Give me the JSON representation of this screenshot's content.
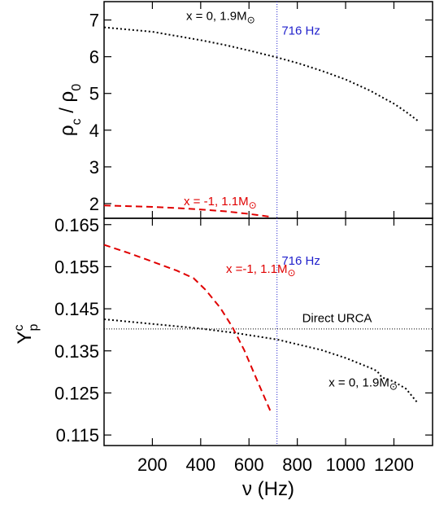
{
  "figure": {
    "x_axis_label": "ν (Hz)",
    "vline_x": 716,
    "colors": {
      "x0": "#000000",
      "xm1": "#e00000",
      "vline": "#2222cc",
      "urca": "#000000"
    }
  },
  "chart_data": [
    {
      "type": "line",
      "ylabel": "ρc / ρ0",
      "xlim": [
        0,
        1360
      ],
      "ylim": [
        1.6,
        7.5
      ],
      "y_ticks": [
        2,
        3,
        4,
        5,
        6,
        7
      ],
      "y_tick_labels": [
        "2",
        "3",
        "4",
        "5",
        "6",
        "7"
      ],
      "series": [
        {
          "name": "x = 0, 1.9M⊙",
          "color": "#000000",
          "style": "dotted",
          "x": [
            0,
            200,
            400,
            500,
            600,
            716,
            800,
            900,
            1000,
            1100,
            1150,
            1200,
            1250,
            1300
          ],
          "y": [
            6.8,
            6.68,
            6.45,
            6.32,
            6.17,
            5.98,
            5.83,
            5.62,
            5.38,
            5.08,
            4.9,
            4.72,
            4.5,
            4.25
          ]
        },
        {
          "name": "x = -1,  1.1M⊙",
          "color": "#e00000",
          "style": "dashed",
          "x": [
            0,
            100,
            200,
            300,
            400,
            500,
            600,
            690
          ],
          "y": [
            1.95,
            1.93,
            1.91,
            1.88,
            1.84,
            1.79,
            1.72,
            1.64
          ]
        }
      ],
      "annotations": [
        {
          "id": "a_x0",
          "text": "x = 0, 1.9M",
          "sub": "⊙",
          "x": 340,
          "y": 7.0,
          "color": "#000000"
        },
        {
          "id": "a_xm1",
          "text": "x = -1,  1.1M",
          "sub": "⊙",
          "x": 330,
          "y": 1.95,
          "color": "#e00000"
        },
        {
          "id": "a_hz",
          "text": "716 Hz",
          "x": 735,
          "y": 6.6,
          "color": "#2222cc"
        }
      ]
    },
    {
      "type": "line",
      "ylabel": "Yp c",
      "ylabel_main": "Y",
      "ylabel_sub": "p",
      "ylabel_sup": "c",
      "xlim": [
        0,
        1360
      ],
      "ylim": [
        0.1125,
        0.1665
      ],
      "y_ticks": [
        0.115,
        0.125,
        0.135,
        0.145,
        0.155,
        0.165
      ],
      "y_tick_labels": [
        "0.115",
        "0.125",
        "0.135",
        "0.145",
        "0.155",
        "0.165"
      ],
      "x_ticks": [
        200,
        400,
        600,
        800,
        1000,
        1200
      ],
      "x_tick_labels": [
        "200",
        "400",
        "600",
        "800",
        "1000",
        "1200"
      ],
      "hline": {
        "y": 0.1402,
        "label": "Direct URCA",
        "style": "dotted"
      },
      "series": [
        {
          "name": "x = 0, 1.9M⊙",
          "color": "#000000",
          "style": "dotted",
          "x": [
            0,
            200,
            400,
            550,
            716,
            900,
            1000,
            1100,
            1130,
            1150,
            1200,
            1250,
            1300
          ],
          "y": [
            0.1425,
            0.1414,
            0.1403,
            0.1392,
            0.1377,
            0.1352,
            0.1333,
            0.131,
            0.1302,
            0.1287,
            0.1277,
            0.126,
            0.1225
          ]
        },
        {
          "name": "x = -1,  1.1M⊙",
          "color": "#e00000",
          "style": "dashed",
          "x": [
            0,
            100,
            200,
            300,
            370,
            420,
            480,
            530,
            580,
            630,
            690
          ],
          "y": [
            0.1602,
            0.1583,
            0.1562,
            0.1541,
            0.1523,
            0.1495,
            0.1453,
            0.1408,
            0.1352,
            0.1285,
            0.1205
          ]
        }
      ],
      "annotations": [
        {
          "id": "b_xm1",
          "text": "x =-1,  1.1M",
          "sub": "⊙",
          "x": 505,
          "y": 0.1535,
          "color": "#e00000"
        },
        {
          "id": "b_hz",
          "text": "716 Hz",
          "x": 735,
          "y": 0.1555,
          "color": "#2222cc"
        },
        {
          "id": "b_urca",
          "text": "Direct URCA",
          "x": 820,
          "y": 0.1418,
          "color": "#000000"
        },
        {
          "id": "b_x0",
          "text": "x = 0, 1.9M",
          "sub": "⊙",
          "x": 930,
          "y": 0.1265,
          "color": "#000000"
        }
      ]
    }
  ]
}
